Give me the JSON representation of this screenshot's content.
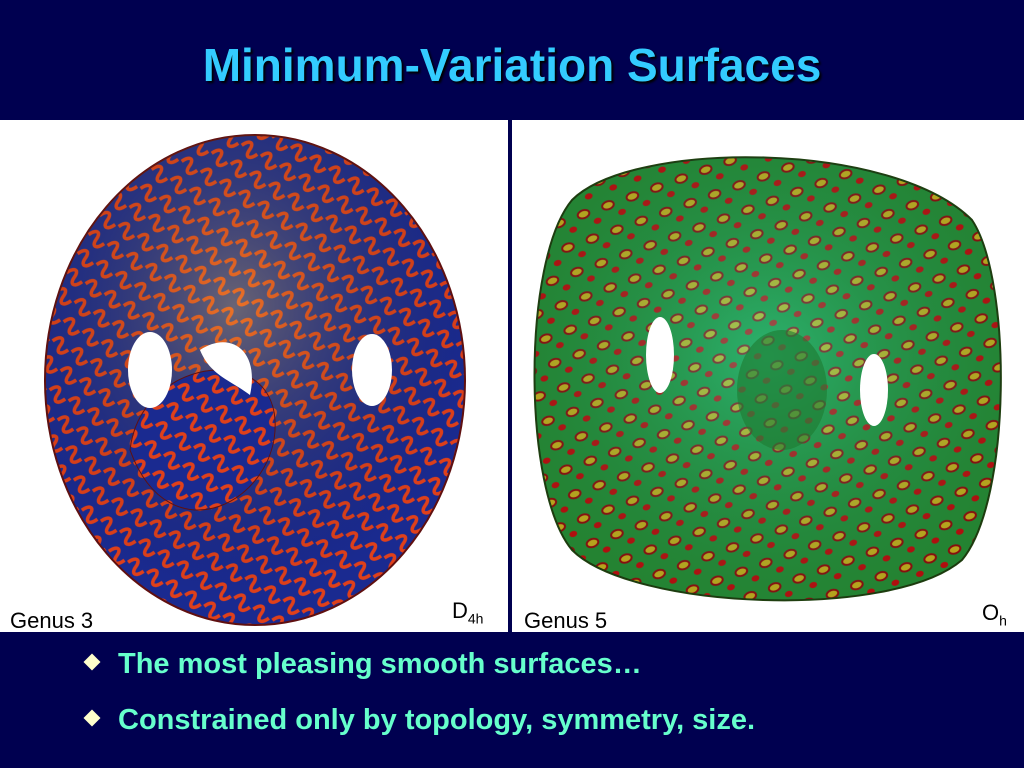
{
  "title": "Minimum-Variation Surfaces",
  "panels": [
    {
      "label": "Genus 3",
      "symmetry": "D",
      "symmetry_sub": "4h"
    },
    {
      "label": "Genus 5",
      "symmetry": "O",
      "symmetry_sub": "h"
    }
  ],
  "bullets": [
    "The most pleasing smooth surfaces…",
    "Constrained only by topology, symmetry, size."
  ]
}
